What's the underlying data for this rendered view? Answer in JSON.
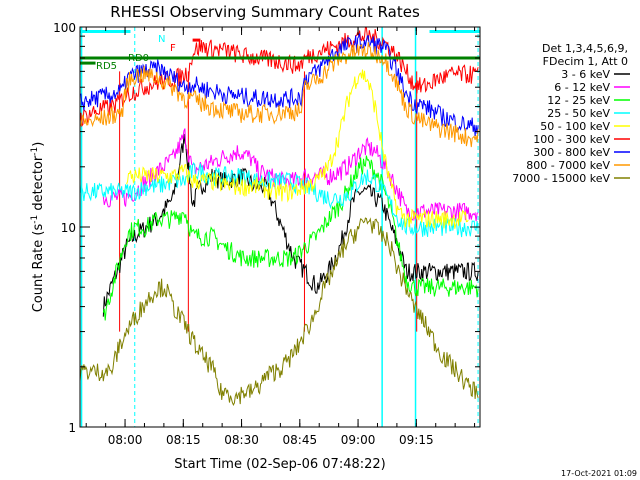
{
  "chart_data": {
    "type": "line",
    "title": "RHESSI Observing Summary Count Rates",
    "xlabel": "Start Time (02-Sep-06 07:48:22)",
    "ylabel": "Count Rate (s",
    "ylabel_exp": "-1",
    "ylabel_tail": " detector",
    "ylabel_end": ")",
    "footer": "17-Oct-2021 01:09",
    "x_unit": "minutes since 07:48:22",
    "xlim": [
      0,
      103
    ],
    "ylim": [
      1,
      100
    ],
    "yscale": "log",
    "grid": false,
    "x_ticks": [
      {
        "value": 11.6,
        "label": "08:00"
      },
      {
        "value": 26.6,
        "label": "08:15"
      },
      {
        "value": 41.6,
        "label": "08:30"
      },
      {
        "value": 56.6,
        "label": "08:45"
      },
      {
        "value": 71.6,
        "label": "09:00"
      },
      {
        "value": 86.6,
        "label": "09:15"
      }
    ],
    "y_ticks": [
      {
        "value": 1,
        "label": "1"
      },
      {
        "value": 10,
        "label": "10"
      },
      {
        "value": 100,
        "label": "100"
      }
    ],
    "legend": {
      "placement": "right",
      "header": [
        "Det 1,3,4,5,6,9,",
        "FDecim 1, Att 0"
      ]
    },
    "series": [
      {
        "name": "3 - 6 keV",
        "color": "#000000",
        "x": [
          6,
          12,
          14,
          17,
          20,
          24,
          27,
          29,
          31,
          34,
          37,
          42,
          45,
          48,
          52,
          55,
          58,
          61,
          64,
          67,
          70,
          72,
          74,
          76,
          78,
          80,
          82,
          84,
          86,
          89,
          91,
          93,
          96,
          100,
          102.5
        ],
        "y": [
          4,
          8,
          9,
          10,
          11,
          14,
          29,
          13,
          16,
          18,
          17,
          18,
          16,
          16,
          10,
          7,
          6,
          5,
          6,
          8,
          13,
          15,
          15,
          14,
          13,
          10,
          8,
          6,
          6,
          6,
          6,
          6,
          6,
          6,
          6
        ]
      },
      {
        "name": "6 - 12 keV",
        "color": "#ff00ff",
        "x": [
          6,
          12,
          14,
          17,
          20,
          24,
          27,
          29,
          31,
          34,
          38,
          41,
          44,
          46,
          49,
          52,
          55,
          58,
          61,
          64,
          67,
          70,
          72,
          74,
          76,
          78,
          80,
          82,
          84,
          86,
          89,
          91,
          93,
          96,
          100,
          102.5
        ],
        "y": [
          14,
          14,
          15,
          17,
          19,
          22,
          29,
          19,
          20,
          21,
          23,
          24,
          22,
          19,
          18,
          17,
          17,
          18,
          18,
          18,
          19,
          21,
          24,
          25,
          24,
          21,
          18,
          15,
          12,
          12,
          12,
          12,
          12,
          12,
          12,
          12
        ]
      },
      {
        "name": "12 - 25 keV",
        "color": "#00ff00",
        "x": [
          6,
          12,
          14,
          17,
          20,
          24,
          27,
          29,
          31,
          34,
          37,
          42,
          45,
          48,
          52,
          55,
          58,
          61,
          64,
          67,
          70,
          72,
          74,
          76,
          78,
          80,
          82,
          84,
          86,
          89,
          91,
          93,
          96,
          100,
          102.5
        ],
        "y": [
          3.5,
          9,
          10,
          10,
          11,
          11,
          12,
          9,
          9,
          9,
          8,
          7,
          7,
          7,
          7,
          7,
          8,
          9,
          11,
          13,
          17,
          20,
          21,
          19,
          16,
          12,
          8,
          5.5,
          5,
          5,
          5,
          5,
          5,
          5,
          5
        ]
      },
      {
        "name": "25 - 50 keV",
        "color": "#00ffff",
        "x": [
          0,
          6,
          10,
          14,
          17,
          20,
          24,
          27,
          29,
          31,
          34,
          38,
          42,
          46,
          50,
          54,
          58,
          61,
          64,
          67,
          70,
          72,
          74,
          76,
          78,
          80,
          82,
          84,
          86,
          89,
          91,
          93,
          96,
          100,
          102.5
        ],
        "y": [
          15,
          15,
          15,
          15,
          16,
          16,
          17,
          17,
          19,
          19,
          18,
          18,
          18,
          17,
          17,
          17,
          16,
          15,
          14,
          14,
          15,
          17,
          18,
          17,
          15,
          13,
          11,
          10,
          10,
          10,
          10,
          10,
          10,
          10,
          10
        ]
      },
      {
        "name": "50 - 100 keV",
        "color": "#ffff00",
        "x": [
          12,
          17,
          20,
          24,
          27,
          29,
          31,
          34,
          38,
          42,
          46,
          50,
          54,
          58,
          61,
          64,
          67,
          69,
          71,
          72,
          74,
          76,
          78,
          80,
          82,
          84,
          86,
          89,
          93,
          100
        ],
        "y": [
          18,
          18,
          18,
          18,
          19,
          17,
          17,
          17,
          16,
          16,
          16,
          15,
          15,
          16,
          17,
          20,
          30,
          43,
          55,
          60,
          55,
          40,
          24,
          16,
          12,
          11,
          11,
          11,
          11,
          11
        ]
      },
      {
        "name": "100 - 300 keV",
        "color": "#ff0000",
        "x": [
          0,
          4,
          8,
          10,
          11,
          12,
          14,
          16,
          20,
          24,
          27,
          28,
          29,
          31,
          34,
          38,
          42,
          46,
          50,
          54,
          56,
          57,
          58,
          61,
          64,
          67,
          70,
          72,
          74,
          76,
          78,
          80,
          82,
          84,
          86,
          88,
          90,
          92,
          96,
          100,
          102.5
        ],
        "y": [
          35,
          38,
          40,
          42,
          44,
          46,
          48,
          50,
          53,
          55,
          58,
          60,
          75,
          80,
          78,
          76,
          72,
          70,
          68,
          66,
          64,
          66,
          70,
          75,
          78,
          82,
          88,
          90,
          90,
          88,
          85,
          78,
          70,
          60,
          52,
          50,
          52,
          55,
          58,
          58,
          58
        ]
      },
      {
        "name": "300 - 800 keV",
        "color": "#0000ff",
        "x": [
          0,
          4,
          8,
          11,
          12,
          14,
          16,
          20,
          24,
          27,
          29,
          31,
          34,
          38,
          42,
          46,
          50,
          54,
          57,
          58,
          61,
          64,
          67,
          70,
          72,
          74,
          76,
          78,
          80,
          82,
          84,
          86,
          89,
          91,
          93,
          96,
          100,
          102.5
        ],
        "y": [
          42,
          44,
          46,
          48,
          55,
          58,
          60,
          62,
          56,
          50,
          52,
          50,
          48,
          46,
          45,
          44,
          44,
          44,
          45,
          56,
          60,
          70,
          78,
          82,
          84,
          84,
          82,
          80,
          70,
          58,
          46,
          42,
          40,
          38,
          36,
          34,
          32,
          32
        ]
      },
      {
        "name": "800 - 7000 keV",
        "color": "#ff9900",
        "x": [
          0,
          4,
          8,
          11,
          12,
          14,
          16,
          20,
          24,
          27,
          29,
          31,
          34,
          38,
          42,
          46,
          50,
          54,
          57,
          58,
          61,
          64,
          67,
          70,
          72,
          74,
          76,
          78,
          80,
          82,
          84,
          86,
          89,
          91,
          93,
          96,
          100,
          102.5
        ],
        "y": [
          33,
          34,
          36,
          38,
          52,
          57,
          58,
          56,
          50,
          44,
          44,
          42,
          40,
          38,
          37,
          37,
          37,
          38,
          38,
          50,
          55,
          62,
          70,
          74,
          76,
          76,
          74,
          72,
          62,
          50,
          40,
          36,
          33,
          32,
          31,
          30,
          28,
          28
        ]
      },
      {
        "name": "7000 - 15000 keV",
        "color": "#808000",
        "x": [
          0,
          4,
          8,
          10,
          12,
          14,
          16,
          18,
          20,
          22,
          24,
          26,
          28,
          30,
          32,
          34,
          36,
          38,
          40,
          42,
          44,
          46,
          48,
          50,
          52,
          54,
          56,
          58,
          60,
          62,
          64,
          66,
          68,
          70,
          72,
          74,
          76,
          78,
          80,
          82,
          84,
          86,
          88,
          90,
          92,
          94,
          96,
          98,
          100,
          102.5
        ],
        "y": [
          1.9,
          1.9,
          1.9,
          2.5,
          3,
          3.5,
          4,
          4.5,
          5,
          5,
          4,
          3.5,
          3,
          2.5,
          2.2,
          2,
          1.5,
          1.5,
          1.4,
          1.5,
          1.5,
          1.6,
          1.8,
          1.9,
          2,
          2.2,
          2.5,
          3,
          3.5,
          4.5,
          5.5,
          6.5,
          8,
          9,
          10,
          11,
          10,
          9,
          8,
          6,
          5,
          4,
          3.5,
          3,
          2.5,
          2.2,
          2,
          1.8,
          1.6,
          1.5
        ]
      }
    ],
    "flags": [
      {
        "label": "N",
        "color": "#00ffff",
        "y": 95,
        "segments": [
          [
            0,
            13
          ],
          [
            90,
            103
          ]
        ]
      },
      {
        "label": "F",
        "color": "#ff0000",
        "y": 86,
        "segments": [
          [
            29,
            31
          ]
        ]
      },
      {
        "label": "RD0",
        "color": "#008000",
        "y": 70,
        "segments": [
          [
            0,
            103
          ]
        ]
      },
      {
        "label": "RD5",
        "color": "#008000",
        "y": 66,
        "segments": [
          [
            0,
            4
          ]
        ]
      }
    ],
    "saa_lines": {
      "color": "#00ffff",
      "solid": [
        0.4,
        77.8,
        86.4
      ],
      "dashed": [
        14.1,
        102.5
      ]
    },
    "red_lines": [
      10.2,
      27.9,
      57.8,
      86.7
    ]
  }
}
